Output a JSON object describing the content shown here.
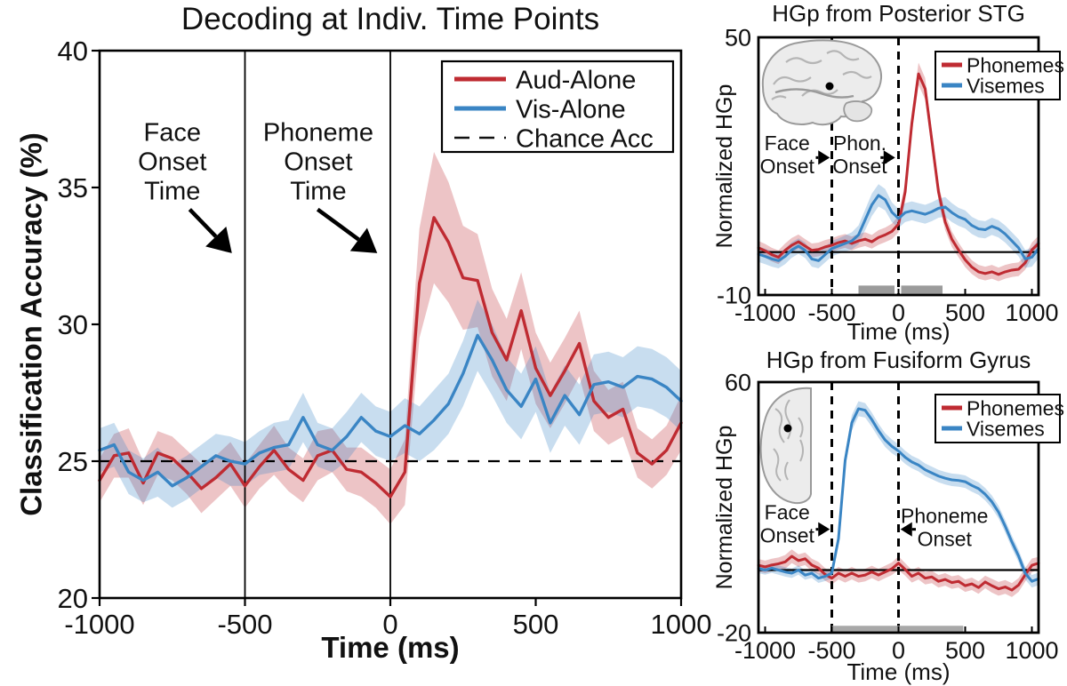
{
  "colors": {
    "aud_red": "#bf2b32",
    "vis_blue": "#3a85c4",
    "chance_black": "#111111",
    "sig_gray": "#9b9b9b",
    "sig_gray_light": "#a8a8a8",
    "band_opacity": 0.28
  },
  "chart_data": [
    {
      "id": "decoding",
      "type": "line",
      "title": "Decoding at Indiv. Time Points",
      "xlabel": "Time (ms)",
      "ylabel": "Classification Accuracy (%)",
      "xlim": [
        -1000,
        1000
      ],
      "ylim": [
        20,
        40
      ],
      "xticks": [
        -1000,
        -500,
        0,
        500,
        1000
      ],
      "yticks": [
        20,
        25,
        30,
        35,
        40
      ],
      "grid": false,
      "legend_position": "top-right-inside",
      "x": [
        -1000,
        -950,
        -900,
        -850,
        -800,
        -750,
        -700,
        -650,
        -600,
        -550,
        -500,
        -450,
        -400,
        -350,
        -300,
        -250,
        -200,
        -150,
        -100,
        -50,
        0,
        50,
        100,
        150,
        200,
        250,
        300,
        350,
        400,
        450,
        500,
        550,
        600,
        650,
        700,
        750,
        800,
        850,
        900,
        950,
        1000
      ],
      "series": [
        {
          "name": "Aud-Alone",
          "color": "#bf2b32",
          "values": [
            24.3,
            25.2,
            25.3,
            24.2,
            25.3,
            25.1,
            24.6,
            24.0,
            24.4,
            24.9,
            24.1,
            24.8,
            25.4,
            24.7,
            24.3,
            25.2,
            25.4,
            24.7,
            24.6,
            24.2,
            23.7,
            24.6,
            31.5,
            33.9,
            33.0,
            31.7,
            31.6,
            29.7,
            28.7,
            30.5,
            28.4,
            27.4,
            28.3,
            29.3,
            27.2,
            26.6,
            26.9,
            25.3,
            24.9,
            25.4,
            26.4
          ],
          "band": [
            0.8,
            0.8,
            0.9,
            0.8,
            0.8,
            0.8,
            0.8,
            0.9,
            0.8,
            0.8,
            0.8,
            0.8,
            0.9,
            0.8,
            0.8,
            0.9,
            0.8,
            0.8,
            0.9,
            0.9,
            1.0,
            1.2,
            2.0,
            2.4,
            2.2,
            1.9,
            1.7,
            1.6,
            1.5,
            1.4,
            1.3,
            1.2,
            1.2,
            1.2,
            1.1,
            1.0,
            1.0,
            0.9,
            0.9,
            0.9,
            1.0
          ]
        },
        {
          "name": "Vis-Alone",
          "color": "#3a85c4",
          "values": [
            25.4,
            25.6,
            24.6,
            24.3,
            24.6,
            24.1,
            24.4,
            24.8,
            25.2,
            25.0,
            24.9,
            25.3,
            25.5,
            25.6,
            26.6,
            25.6,
            25.4,
            25.9,
            26.6,
            26.1,
            25.9,
            26.3,
            26.0,
            26.5,
            27.1,
            28.2,
            29.6,
            28.7,
            27.6,
            27.0,
            28.0,
            26.4,
            27.4,
            26.7,
            27.8,
            27.9,
            27.7,
            28.1,
            28.0,
            27.7,
            27.2
          ],
          "band": [
            0.8,
            0.8,
            0.8,
            0.8,
            0.9,
            0.8,
            0.8,
            0.8,
            0.8,
            0.9,
            0.8,
            0.8,
            0.9,
            0.9,
            0.9,
            0.8,
            0.8,
            0.9,
            0.9,
            0.9,
            0.9,
            1.0,
            1.0,
            1.1,
            1.1,
            1.2,
            1.3,
            1.3,
            1.2,
            1.2,
            1.2,
            1.1,
            1.1,
            1.1,
            1.1,
            1.1,
            1.1,
            1.1,
            1.1,
            1.1,
            1.1
          ]
        }
      ],
      "hlines": [
        {
          "y": 25,
          "style": "dashed",
          "label": "Chance Acc"
        }
      ],
      "vlines": [
        {
          "x": -500,
          "style": "solid"
        },
        {
          "x": 0,
          "style": "solid"
        }
      ],
      "legend": [
        {
          "label": "Aud-Alone",
          "color": "#bf2b32",
          "lw": 5
        },
        {
          "label": "Vis-Alone",
          "color": "#3a85c4",
          "lw": 5
        },
        {
          "label": "Chance Acc",
          "color": "#111111",
          "lw": 2.4,
          "dash": "17 11"
        }
      ],
      "annotations": [
        {
          "lines": [
            "Face",
            "Onset",
            "Time"
          ],
          "x": -750,
          "y": 36.7,
          "arrow": {
            "x1": -690,
            "y1": 34.2,
            "x2": -545,
            "y2": 32.6
          }
        },
        {
          "lines": [
            "Phoneme",
            "Onset",
            "Time"
          ],
          "x": -248,
          "y": 36.7,
          "arrow": {
            "x1": -250,
            "y1": 34.2,
            "x2": -45,
            "y2": 32.6
          }
        }
      ]
    },
    {
      "id": "stg",
      "type": "line",
      "title": "HGp from Posterior STG",
      "xlabel": "Time (ms)",
      "ylabel": "Normalized HGp",
      "xlim": [
        -1050,
        1050
      ],
      "ylim": [
        -10,
        50
      ],
      "xticks": [
        -1000,
        -500,
        0,
        500,
        1000
      ],
      "yticks": [
        -10,
        50
      ],
      "grid": false,
      "legend_position": "top-right-inside",
      "inset": "lateral brain surface with electrode dot",
      "x": [
        -1050,
        -1000,
        -950,
        -900,
        -850,
        -800,
        -750,
        -700,
        -650,
        -600,
        -550,
        -500,
        -450,
        -400,
        -350,
        -300,
        -250,
        -200,
        -150,
        -100,
        -50,
        0,
        50,
        100,
        150,
        200,
        250,
        300,
        350,
        400,
        450,
        500,
        550,
        600,
        650,
        700,
        750,
        800,
        850,
        900,
        950,
        1000,
        1050
      ],
      "series": [
        {
          "name": "Phonemes",
          "color": "#bf2b32",
          "values": [
            1.0,
            0.3,
            -0.6,
            -1.2,
            0.4,
            1.6,
            2.4,
            1.4,
            0.4,
            0.6,
            1.2,
            1.6,
            2.2,
            2.6,
            2.0,
            2.6,
            3.0,
            2.4,
            3.4,
            4.0,
            4.8,
            6.5,
            14.0,
            30.0,
            41.5,
            38.0,
            26.0,
            14.0,
            7.0,
            3.0,
            0.5,
            -1.8,
            -3.5,
            -4.6,
            -5.0,
            -4.6,
            -5.2,
            -4.6,
            -4.2,
            -4.0,
            -2.5,
            0.5,
            2.0
          ],
          "band": [
            1.6,
            1.6,
            1.6,
            1.6,
            1.6,
            1.7,
            1.7,
            1.6,
            1.6,
            1.6,
            1.6,
            1.6,
            1.6,
            1.6,
            1.6,
            1.6,
            1.6,
            1.6,
            1.7,
            1.7,
            1.8,
            1.9,
            2.2,
            2.5,
            2.6,
            2.5,
            2.3,
            2.1,
            1.9,
            1.8,
            1.7,
            1.7,
            1.6,
            1.6,
            1.6,
            1.6,
            1.6,
            1.6,
            1.6,
            1.6,
            1.6,
            1.7,
            1.8
          ]
        },
        {
          "name": "Visemes",
          "color": "#3a85c4",
          "values": [
            -0.5,
            -1.0,
            -1.6,
            -2.0,
            -1.0,
            0.5,
            1.4,
            0.4,
            -1.6,
            -2.0,
            -0.6,
            0.8,
            1.4,
            2.0,
            2.6,
            4.0,
            7.5,
            11.0,
            13.2,
            12.2,
            9.3,
            7.8,
            9.2,
            9.6,
            9.2,
            8.8,
            9.4,
            10.2,
            10.5,
            9.2,
            8.2,
            7.6,
            6.2,
            5.4,
            5.2,
            6.0,
            5.4,
            4.2,
            2.6,
            1.0,
            -1.6,
            -1.2,
            0.8
          ],
          "band": [
            1.8,
            1.8,
            1.8,
            1.8,
            1.8,
            1.8,
            1.8,
            1.8,
            1.8,
            1.8,
            1.8,
            1.8,
            1.8,
            1.9,
            2.0,
            2.2,
            2.4,
            2.6,
            2.6,
            2.5,
            2.3,
            2.2,
            2.2,
            2.2,
            2.2,
            2.2,
            2.2,
            2.2,
            2.3,
            2.2,
            2.1,
            2.1,
            2.0,
            2.0,
            2.0,
            2.0,
            2.0,
            2.0,
            2.0,
            2.0,
            2.1,
            2.2,
            2.2
          ]
        }
      ],
      "hlines": [
        {
          "y": 0,
          "style": "solid"
        }
      ],
      "vlines": [
        {
          "x": -500,
          "style": "dashed"
        },
        {
          "x": 0,
          "style": "dashed"
        }
      ],
      "sig_bars": [
        {
          "from": -300,
          "to": -30,
          "v_top": -7.8,
          "v_bottom": -9.7,
          "color": "#9b9b9b"
        },
        {
          "from": 20,
          "to": 330,
          "v_top": -7.8,
          "v_bottom": -9.7,
          "color": "#9b9b9b"
        }
      ],
      "legend": [
        {
          "label": "Phonemes",
          "color": "#bf2b32",
          "lw": 5
        },
        {
          "label": "Visemes",
          "color": "#3a85c4",
          "lw": 5
        }
      ],
      "annotations": [
        {
          "lines": [
            "Face",
            "Onset"
          ],
          "x": -835,
          "y": 23.7,
          "arrow": {
            "x1": -620,
            "y1": 22.0,
            "x2": -515,
            "y2": 22.0
          }
        },
        {
          "lines": [
            "Phon.",
            "Onset"
          ],
          "x": -290,
          "y": 23.7,
          "arrow": {
            "x1": -135,
            "y1": 22.0,
            "x2": -25,
            "y2": 22.0
          }
        }
      ]
    },
    {
      "id": "fusiform",
      "type": "line",
      "title": "HGp from Fusiform Gyrus",
      "xlabel": "Time (ms)",
      "ylabel": "Normalized HGp",
      "xlim": [
        -1050,
        1050
      ],
      "ylim": [
        -20,
        60
      ],
      "xticks": [
        -1000,
        -500,
        0,
        500,
        1000
      ],
      "yticks": [
        -20,
        60
      ],
      "grid": false,
      "legend_position": "top-right-inside",
      "inset": "ventral brain surface with electrode dot",
      "x": [
        -1050,
        -1000,
        -950,
        -900,
        -850,
        -800,
        -750,
        -700,
        -650,
        -600,
        -550,
        -500,
        -450,
        -400,
        -350,
        -300,
        -250,
        -200,
        -150,
        -100,
        -50,
        0,
        50,
        100,
        150,
        200,
        250,
        300,
        350,
        400,
        450,
        500,
        550,
        600,
        650,
        700,
        750,
        800,
        850,
        900,
        950,
        1000,
        1050
      ],
      "series": [
        {
          "name": "Phonemes",
          "color": "#bf2b32",
          "values": [
            1.5,
            1.0,
            1.6,
            2.0,
            2.6,
            4.4,
            3.0,
            3.6,
            1.6,
            0.6,
            -1.4,
            -2.6,
            -1.0,
            -2.0,
            -1.0,
            -2.0,
            -1.6,
            -0.6,
            -1.6,
            -0.6,
            0.4,
            2.2,
            0.2,
            -2.0,
            -1.0,
            -2.6,
            -2.2,
            -3.6,
            -3.0,
            -4.0,
            -3.6,
            -5.0,
            -4.4,
            -5.6,
            -3.8,
            -5.0,
            -6.0,
            -5.4,
            -6.4,
            -4.8,
            -1.5,
            1.5,
            2.2
          ],
          "band": [
            2.0,
            2.0,
            2.0,
            2.0,
            2.2,
            2.2,
            2.0,
            2.0,
            2.0,
            2.0,
            2.0,
            2.0,
            2.0,
            2.0,
            2.0,
            2.0,
            2.0,
            2.0,
            2.0,
            2.0,
            2.0,
            2.2,
            2.0,
            2.0,
            2.0,
            2.0,
            2.0,
            2.0,
            2.0,
            2.0,
            2.0,
            2.0,
            2.0,
            2.0,
            2.0,
            2.2,
            2.2,
            2.2,
            2.2,
            2.2,
            2.2,
            2.2,
            2.0
          ]
        },
        {
          "name": "Visemes",
          "color": "#3a85c4",
          "values": [
            0.5,
            0.0,
            0.6,
            0.0,
            -0.6,
            -1.0,
            0.0,
            -1.6,
            -1.0,
            -2.6,
            -2.0,
            -1.0,
            10.0,
            35.0,
            47.0,
            51.5,
            51.0,
            48.0,
            44.5,
            41.5,
            39.5,
            38.0,
            36.0,
            34.5,
            33.5,
            32.0,
            31.0,
            30.0,
            29.3,
            28.8,
            28.6,
            28.2,
            27.0,
            26.0,
            24.2,
            21.8,
            18.5,
            14.0,
            9.0,
            4.5,
            -1.0,
            -3.6,
            -2.8
          ],
          "band": [
            1.5,
            1.5,
            1.5,
            1.5,
            1.5,
            1.5,
            1.5,
            1.5,
            1.5,
            1.5,
            1.5,
            1.6,
            2.0,
            2.4,
            2.5,
            2.4,
            2.3,
            2.3,
            2.2,
            2.2,
            2.2,
            2.1,
            2.1,
            2.0,
            2.0,
            2.0,
            2.0,
            2.0,
            2.0,
            2.0,
            2.0,
            2.0,
            2.0,
            2.0,
            2.0,
            2.0,
            2.0,
            2.0,
            2.0,
            2.0,
            2.0,
            2.0,
            2.0
          ]
        }
      ],
      "hlines": [
        {
          "y": 0,
          "style": "solid"
        }
      ],
      "vlines": [
        {
          "x": -500,
          "style": "dashed"
        },
        {
          "x": 0,
          "style": "dashed"
        }
      ],
      "sig_bars": [
        {
          "from": -500,
          "to": 485,
          "v_top": -17.8,
          "v_bottom": -19.8,
          "color": "#a8a8a8"
        }
      ],
      "legend": [
        {
          "label": "Phonemes",
          "color": "#bf2b32",
          "lw": 5
        },
        {
          "label": "Visemes",
          "color": "#3a85c4",
          "lw": 5
        }
      ],
      "annotations": [
        {
          "lines": [
            "Face",
            "Onset"
          ],
          "x": -835,
          "y": 16.2,
          "arrow": {
            "x1": -620,
            "y1": 13.0,
            "x2": -515,
            "y2": 13.0
          }
        },
        {
          "lines": [
            "Phoneme",
            "Onset"
          ],
          "x": 345,
          "y": 15.0,
          "arrow": {
            "x1": 130,
            "y1": 13.0,
            "x2": 15,
            "y2": 13.0
          }
        }
      ]
    }
  ]
}
